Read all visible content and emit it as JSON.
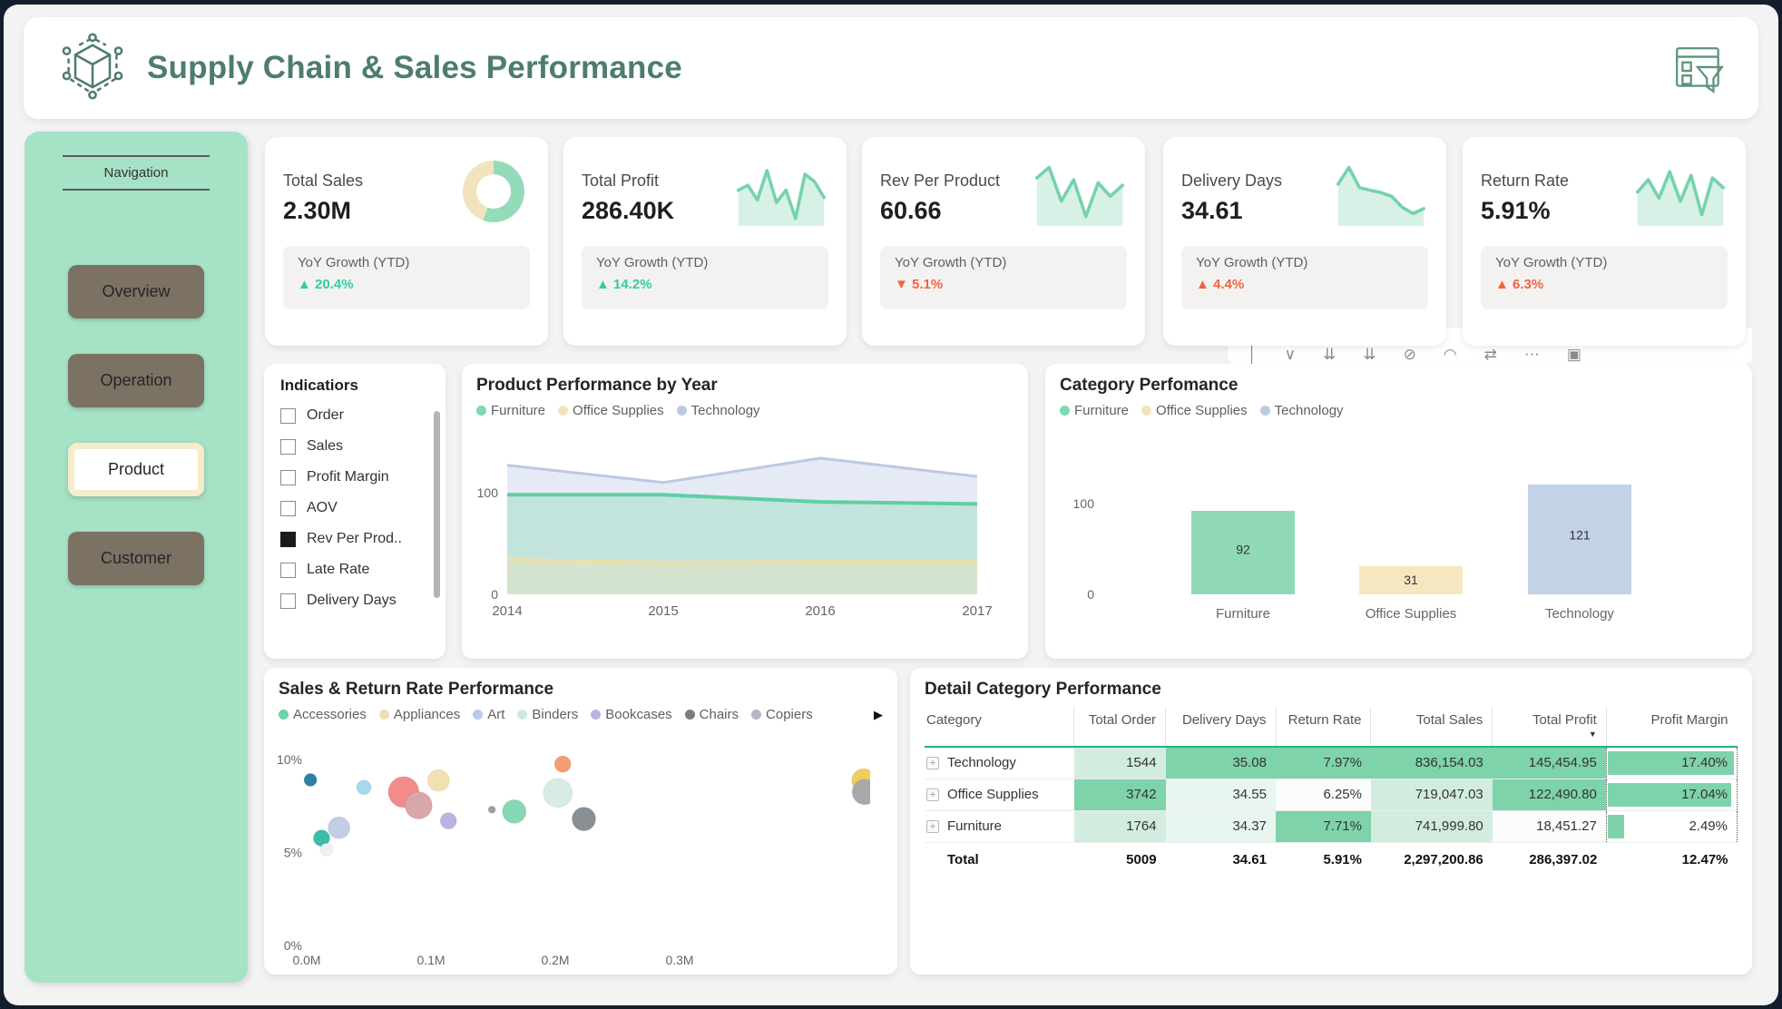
{
  "header": {
    "title": "Supply Chain & Sales Performance",
    "title_color": "#4e7d6a",
    "logo_icon": "supply-network-cube-icon",
    "corner_icon": "report-filter-icon"
  },
  "sidebar": {
    "nav_label": "Navigation",
    "bg_color": "#a5e2c6",
    "button_color": "#7b7264",
    "active_border_color": "#f6ecca",
    "items": [
      {
        "label": "Overview",
        "active": false
      },
      {
        "label": "Operation",
        "active": false
      },
      {
        "label": "Product",
        "active": true
      },
      {
        "label": "Customer",
        "active": false
      }
    ]
  },
  "kpi_cards": [
    {
      "label": "Total Sales",
      "value": "2.30M",
      "growth_label": "YoY Growth (YTD)",
      "growth_value": "20.4%",
      "growth_direction": "up",
      "growth_color": "#2fcfa3",
      "visual": "donut",
      "donut": {
        "segment_deg": 200,
        "colors": [
          "#92dcba",
          "#f1e3bb"
        ]
      }
    },
    {
      "label": "Total Profit",
      "value": "286.40K",
      "growth_label": "YoY Growth (YTD)",
      "growth_value": "14.2%",
      "growth_direction": "up",
      "growth_color": "#2fcfa3",
      "visual": "sparkline",
      "points": [
        58,
        66,
        42,
        90,
        38,
        58,
        12,
        84,
        72,
        46
      ]
    },
    {
      "label": "Rev Per Product",
      "value": "60.66",
      "growth_label": "YoY Growth (YTD)",
      "growth_value": "5.1%",
      "growth_direction": "down",
      "growth_color": "#f2633f",
      "visual": "sparkline",
      "points": [
        78,
        95,
        40,
        75,
        15,
        70,
        48,
        66
      ]
    },
    {
      "label": "Delivery Days",
      "value": "34.61",
      "growth_label": "YoY Growth (YTD)",
      "growth_value": "4.4%",
      "growth_direction": "up",
      "growth_color": "#f2633f",
      "visual": "sparkline",
      "points": [
        68,
        95,
        62,
        58,
        54,
        48,
        30,
        20,
        28
      ]
    },
    {
      "label": "Return Rate",
      "value": "5.91%",
      "growth_label": "YoY Growth (YTD)",
      "growth_value": "6.3%",
      "growth_direction": "up",
      "growth_color": "#f2633f",
      "visual": "sparkline",
      "points": [
        55,
        75,
        45,
        88,
        40,
        82,
        18,
        78,
        62
      ]
    }
  ],
  "sparkline_style": {
    "line": "#74d3ac",
    "fill": "#d8f1e6"
  },
  "visual_toolbar": {
    "icons": [
      {
        "name": "drill-up-icon",
        "glyph": "│"
      },
      {
        "name": "drill-down-icon",
        "glyph": "∨"
      },
      {
        "name": "go-to-next-level-icon",
        "glyph": "⇊"
      },
      {
        "name": "expand-all-levels-icon",
        "glyph": "⇊"
      },
      {
        "name": "pin-visual-icon",
        "glyph": "⊘"
      },
      {
        "name": "comment-icon",
        "glyph": "◠"
      },
      {
        "name": "share-icon",
        "glyph": "⇄"
      },
      {
        "name": "more-options-icon",
        "glyph": "⋯"
      },
      {
        "name": "focus-mode-icon",
        "glyph": "▣"
      }
    ]
  },
  "indicators": {
    "title": "Indicatiors",
    "options": [
      {
        "label": "Order",
        "checked": false
      },
      {
        "label": "Sales",
        "checked": false
      },
      {
        "label": "Profit Margin",
        "checked": false
      },
      {
        "label": "AOV",
        "checked": false
      },
      {
        "label": "Rev Per Prod..",
        "checked": true
      },
      {
        "label": "Late Rate",
        "checked": false
      },
      {
        "label": "Delivery Days",
        "checked": false
      }
    ]
  },
  "chart_data": [
    {
      "id": "product-performance-area",
      "type": "area",
      "title": "Product Performance by Year",
      "x": [
        "2014",
        "2015",
        "2016",
        "2017"
      ],
      "series": [
        {
          "name": "Furniture",
          "values": [
            98,
            98,
            91,
            89
          ],
          "line": "#5ecfa2",
          "fill": "rgba(146,220,186,0.40)",
          "dot": "#7ed8b0"
        },
        {
          "name": "Office Supplies",
          "values": [
            34,
            31,
            32,
            32
          ],
          "line": "#eedfa9",
          "fill": "rgba(241,227,187,0.40)",
          "dot": "#f1e3bb"
        },
        {
          "name": "Technology",
          "values": [
            127,
            110,
            134,
            116
          ],
          "line": "#bcc9e2",
          "fill": "rgba(207,217,236,0.55)",
          "dot": "#bcc9e2"
        }
      ],
      "yticks": [
        0,
        100
      ],
      "ylim": [
        0,
        145
      ],
      "legend_position": "top",
      "grid": false
    },
    {
      "id": "category-performance-bar",
      "type": "bar",
      "title": "Category Perfomance",
      "categories": [
        "Furniture",
        "Office Supplies",
        "Technology"
      ],
      "values": [
        92,
        31,
        121
      ],
      "colors": [
        "#8fd9b6",
        "#f5e7c0",
        "#c3d2e6"
      ],
      "legend": [
        {
          "name": "Furniture",
          "color": "#7ed8b0"
        },
        {
          "name": "Office Supplies",
          "color": "#f1e3bb"
        },
        {
          "name": "Technology",
          "color": "#bcc9e2"
        }
      ],
      "yticks": [
        0,
        100
      ],
      "ylim": [
        0,
        145
      ],
      "grid": false
    },
    {
      "id": "sales-return-scatter",
      "type": "scatter",
      "title": "Sales & Return Rate Performance",
      "xticks": [
        "0.0M",
        "0.1M",
        "0.2M",
        "0.3M"
      ],
      "yticks": [
        "0%",
        "5%",
        "10%"
      ],
      "xlim": [
        0,
        0.45
      ],
      "ylim": [
        0,
        10
      ],
      "legend": [
        {
          "name": "Accessories",
          "color": "#6fd1a7"
        },
        {
          "name": "Appliances",
          "color": "#f0dfae"
        },
        {
          "name": "Art",
          "color": "#b9cbe8"
        },
        {
          "name": "Binders",
          "color": "#cfe9df"
        },
        {
          "name": "Bookcases",
          "color": "#b9b4e0"
        },
        {
          "name": "Chairs",
          "color": "#7d7d7d"
        },
        {
          "name": "Copiers",
          "color": "#b3b8c4"
        }
      ],
      "legend_more_arrow": "▶",
      "points": [
        {
          "x": 0.003,
          "y": 8.9,
          "r": 7,
          "color": "#2e7fa8"
        },
        {
          "x": 0.012,
          "y": 5.77,
          "r": 9,
          "color": "#3cbcab"
        },
        {
          "x": 0.016,
          "y": 5.15,
          "r": 7,
          "color": "#eef2f6"
        },
        {
          "x": 0.026,
          "y": 6.33,
          "r": 12,
          "color": "#c3cde3"
        },
        {
          "x": 0.046,
          "y": 8.5,
          "r": 8,
          "color": "#a6d9ef"
        },
        {
          "x": 0.078,
          "y": 8.25,
          "r": 17,
          "color": "#f28b8b"
        },
        {
          "x": 0.09,
          "y": 7.53,
          "r": 15,
          "color": "#d8a7a7"
        },
        {
          "x": 0.106,
          "y": 8.87,
          "r": 12,
          "color": "#f3e0b2"
        },
        {
          "x": 0.114,
          "y": 6.7,
          "r": 9,
          "color": "#b9b4e0"
        },
        {
          "x": 0.149,
          "y": 7.3,
          "r": 4,
          "color": "#9aa0a6"
        },
        {
          "x": 0.167,
          "y": 7.2,
          "r": 13,
          "color": "#86d7b4"
        },
        {
          "x": 0.202,
          "y": 8.2,
          "r": 16,
          "color": "#d9ece4"
        },
        {
          "x": 0.206,
          "y": 9.75,
          "r": 9,
          "color": "#f79b75"
        },
        {
          "x": 0.223,
          "y": 6.8,
          "r": 13,
          "color": "#8a8f94"
        },
        {
          "x": 0.448,
          "y": 8.87,
          "r": 13,
          "color": "#f0cd5e"
        },
        {
          "x": 0.449,
          "y": 8.25,
          "r": 14,
          "color": "#a9a9a9"
        }
      ]
    },
    {
      "id": "detail-category-table",
      "type": "table",
      "title": "Detail Category Performance",
      "columns": [
        "Category",
        "Total Order",
        "Delivery Days",
        "Return Rate",
        "Total Sales",
        "Total Profit",
        "Profit Margin"
      ],
      "sorted_column": "Total Profit",
      "sort_direction": "desc",
      "shade_colors": {
        "strong": "#7ed3ab",
        "light": "#d2ede0",
        "faint": "#e9f6f0",
        "none": "#fbfdfc"
      },
      "rows": [
        {
          "category": "Technology",
          "values": [
            "1544",
            "35.08",
            "7.97%",
            "836,154.03",
            "145,454.95"
          ],
          "shades": [
            "light",
            "strong",
            "strong",
            "strong",
            "strong"
          ],
          "profit_margin": "17.40%",
          "bar_pct": 97
        },
        {
          "category": "Office Supplies",
          "values": [
            "3742",
            "34.55",
            "6.25%",
            "719,047.03",
            "122,490.80"
          ],
          "shades": [
            "strong",
            "faint",
            "none",
            "light",
            "strong"
          ],
          "profit_margin": "17.04%",
          "bar_pct": 95
        },
        {
          "category": "Furniture",
          "values": [
            "1764",
            "34.37",
            "7.71%",
            "741,999.80",
            "18,451.27"
          ],
          "shades": [
            "light",
            "faint",
            "strong",
            "light",
            "none"
          ],
          "profit_margin": "2.49%",
          "bar_pct": 13
        }
      ],
      "total_row": {
        "label": "Total",
        "values": [
          "5009",
          "34.61",
          "5.91%",
          "2,297,200.86",
          "286,397.02"
        ],
        "profit_margin": "12.47%"
      }
    }
  ]
}
